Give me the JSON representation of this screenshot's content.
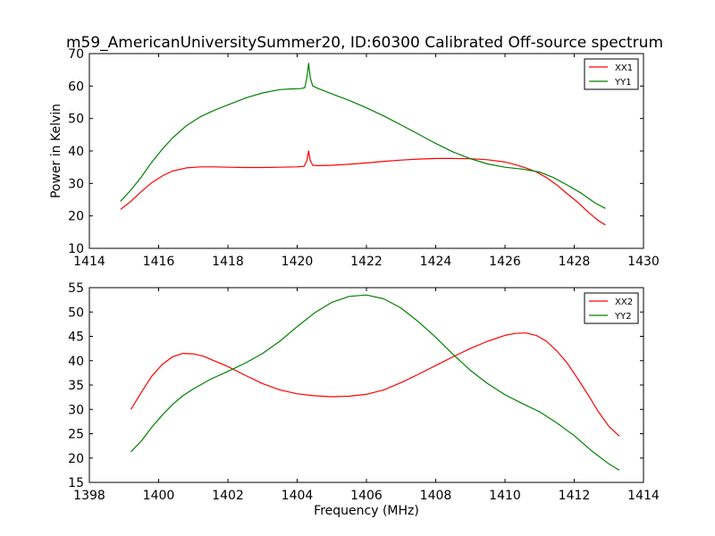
{
  "title": "m59_AmericanUniversitySummer20, ID:60300 Calibrated Off-source spectrum",
  "chart_data": [
    {
      "type": "line",
      "ylabel": "Power in Kelvin",
      "xlabel": "",
      "xlim": [
        1414,
        1430
      ],
      "ylim": [
        10,
        70
      ],
      "xticks": [
        "1414",
        "1416",
        "1418",
        "1420",
        "1422",
        "1424",
        "1426",
        "1428",
        "1430"
      ],
      "yticks": [
        "10",
        "20",
        "30",
        "40",
        "50",
        "60",
        "70"
      ],
      "legend": "top-right",
      "grid": false,
      "series": [
        {
          "name": "XX1",
          "color": "#ff0000",
          "x": [
            1414.9,
            1415.2,
            1415.5,
            1415.8,
            1416.1,
            1416.4,
            1416.8,
            1417.2,
            1417.6,
            1418.0,
            1418.5,
            1419.0,
            1419.5,
            1420.0,
            1420.2,
            1420.28,
            1420.33,
            1420.38,
            1420.45,
            1420.6,
            1421.0,
            1421.5,
            1422.0,
            1422.5,
            1423.0,
            1423.5,
            1424.0,
            1424.5,
            1425.0,
            1425.5,
            1426.0,
            1426.3,
            1426.6,
            1426.9,
            1427.2,
            1427.5,
            1427.8,
            1428.1,
            1428.4,
            1428.7,
            1428.9
          ],
          "values": [
            22.0,
            24.5,
            27.5,
            30.2,
            32.3,
            33.8,
            34.8,
            35.1,
            35.1,
            35.0,
            34.9,
            34.9,
            35.0,
            35.1,
            35.3,
            37.0,
            40.0,
            37.0,
            35.6,
            35.5,
            35.6,
            35.9,
            36.3,
            36.8,
            37.2,
            37.5,
            37.7,
            37.7,
            37.6,
            37.3,
            36.6,
            35.8,
            34.8,
            33.6,
            31.8,
            29.5,
            26.8,
            24.2,
            21.2,
            18.5,
            17.2
          ]
        },
        {
          "name": "YY1",
          "color": "#008000",
          "x": [
            1414.9,
            1415.2,
            1415.5,
            1415.8,
            1416.1,
            1416.4,
            1416.8,
            1417.2,
            1417.6,
            1418.0,
            1418.5,
            1419.0,
            1419.5,
            1419.8,
            1420.1,
            1420.22,
            1420.28,
            1420.33,
            1420.38,
            1420.45,
            1420.6,
            1421.0,
            1421.5,
            1422.0,
            1422.5,
            1423.0,
            1423.5,
            1424.0,
            1424.5,
            1425.0,
            1425.5,
            1426.0,
            1426.5,
            1427.0,
            1427.4,
            1427.8,
            1428.2,
            1428.6,
            1428.9
          ],
          "values": [
            24.5,
            28.0,
            32.0,
            36.5,
            40.5,
            44.0,
            47.8,
            50.5,
            52.5,
            54.2,
            56.3,
            57.9,
            58.9,
            59.1,
            59.2,
            59.5,
            62.5,
            67.0,
            62.5,
            60.0,
            59.3,
            57.6,
            55.6,
            53.3,
            50.8,
            48.0,
            45.2,
            42.3,
            39.7,
            37.6,
            36.0,
            35.0,
            34.4,
            33.5,
            31.8,
            29.5,
            27.0,
            24.0,
            22.3
          ]
        }
      ]
    },
    {
      "type": "line",
      "ylabel": "",
      "xlabel": "Frequency (MHz)",
      "xlim": [
        1398,
        1414
      ],
      "ylim": [
        15,
        55
      ],
      "xticks": [
        "1398",
        "1400",
        "1402",
        "1404",
        "1406",
        "1408",
        "1410",
        "1412",
        "1414"
      ],
      "yticks": [
        "15",
        "20",
        "25",
        "30",
        "35",
        "40",
        "45",
        "50",
        "55"
      ],
      "legend": "top-right",
      "grid": false,
      "series": [
        {
          "name": "XX2",
          "color": "#ff0000",
          "x": [
            1399.2,
            1399.5,
            1399.8,
            1400.1,
            1400.4,
            1400.7,
            1401.0,
            1401.3,
            1401.6,
            1402.0,
            1402.5,
            1403.0,
            1403.5,
            1404.0,
            1404.5,
            1405.0,
            1405.5,
            1406.0,
            1406.5,
            1407.0,
            1407.5,
            1408.0,
            1408.5,
            1409.0,
            1409.5,
            1410.0,
            1410.3,
            1410.6,
            1410.9,
            1411.2,
            1411.5,
            1411.8,
            1412.1,
            1412.4,
            1412.7,
            1413.0,
            1413.3
          ],
          "values": [
            30.0,
            33.5,
            36.8,
            39.2,
            40.8,
            41.5,
            41.4,
            40.9,
            40.0,
            38.8,
            37.0,
            35.3,
            34.0,
            33.2,
            32.8,
            32.6,
            32.7,
            33.1,
            34.0,
            35.5,
            37.2,
            39.0,
            40.8,
            42.5,
            44.0,
            45.2,
            45.6,
            45.7,
            45.2,
            44.0,
            42.0,
            39.5,
            36.3,
            33.0,
            29.5,
            26.5,
            24.5
          ]
        },
        {
          "name": "YY2",
          "color": "#008000",
          "x": [
            1399.2,
            1399.5,
            1399.8,
            1400.1,
            1400.4,
            1400.7,
            1401.0,
            1401.5,
            1402.0,
            1402.5,
            1403.0,
            1403.5,
            1404.0,
            1404.5,
            1405.0,
            1405.5,
            1406.0,
            1406.5,
            1407.0,
            1407.5,
            1408.0,
            1408.5,
            1409.0,
            1409.5,
            1410.0,
            1410.5,
            1411.0,
            1411.5,
            1412.0,
            1412.5,
            1413.0,
            1413.3
          ],
          "values": [
            21.3,
            23.5,
            26.3,
            28.8,
            31.0,
            32.8,
            34.2,
            36.2,
            37.8,
            39.5,
            41.5,
            44.0,
            47.0,
            49.8,
            52.0,
            53.2,
            53.5,
            52.7,
            50.8,
            48.0,
            44.8,
            41.3,
            38.0,
            35.3,
            33.0,
            31.2,
            29.5,
            27.2,
            24.6,
            21.5,
            18.8,
            17.5
          ]
        }
      ]
    }
  ]
}
